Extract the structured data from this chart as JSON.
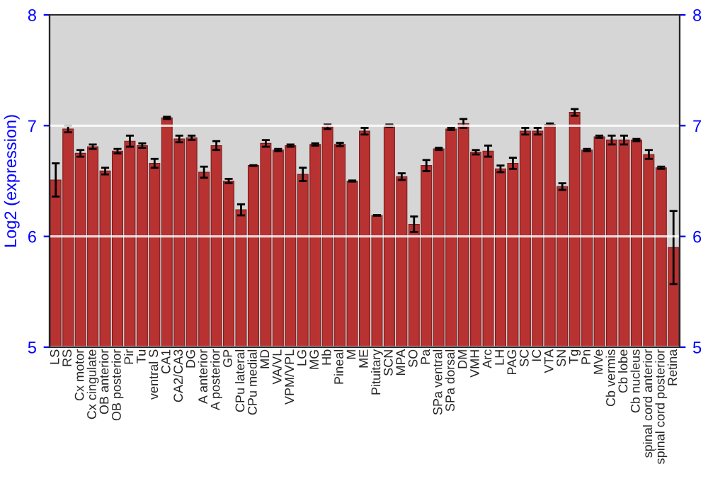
{
  "chart_data": {
    "type": "bar",
    "ylabel": "Log2 (expression)",
    "categories": [
      "LS",
      "RS",
      "Cx motor",
      "Cx cingulate",
      "OB anterior",
      "OB posterior",
      "Pir",
      "Tu",
      "ventral S",
      "CA1",
      "CA2/CA3",
      "DG",
      "A anterior",
      "A posterior",
      "GP",
      "CPu lateral",
      "CPu medial",
      "MD",
      "VA/VL",
      "VPM/VPL",
      "LG",
      "MG",
      "Hb",
      "Pineal",
      "M",
      "ME",
      "Pituitary",
      "SCN",
      "MPA",
      "SO",
      "Pa",
      "SPa ventral",
      "SPa dorsal",
      "DM",
      "VMH",
      "Arc",
      "LH",
      "PAG",
      "SC",
      "IC",
      "VTA",
      "SN",
      "Tg",
      "Pn",
      "MVe",
      "Cb vermis",
      "Cb lobe",
      "Cb nucleus",
      "spinal cord anterior",
      "spinal cord posterior",
      "Retina"
    ],
    "series": [
      {
        "color": "#b83232",
        "values": [
          6.51,
          6.97,
          6.75,
          6.81,
          6.59,
          6.77,
          6.86,
          6.82,
          6.66,
          7.07,
          6.88,
          6.89,
          6.58,
          6.82,
          6.5,
          6.24,
          6.64,
          6.84,
          6.78,
          6.82,
          6.56,
          6.83,
          6.99,
          6.83,
          6.5,
          6.95,
          6.19,
          7.0,
          6.54,
          6.11,
          6.64,
          6.79,
          6.97,
          7.02,
          6.76,
          6.77,
          6.61,
          6.66,
          6.95,
          6.95,
          7.01,
          6.45,
          7.12,
          6.78,
          6.9,
          6.87,
          6.87,
          6.87,
          6.74,
          6.62,
          5.9
        ],
        "errors": [
          0.15,
          0.03,
          0.03,
          0.02,
          0.03,
          0.02,
          0.05,
          0.02,
          0.04,
          0.01,
          0.03,
          0.02,
          0.05,
          0.04,
          0.02,
          0.05,
          0.003,
          0.03,
          0.01,
          0.01,
          0.06,
          0.01,
          0.02,
          0.015,
          0.005,
          0.03,
          0.003,
          0.01,
          0.03,
          0.07,
          0.05,
          0.01,
          0.01,
          0.04,
          0.02,
          0.05,
          0.03,
          0.05,
          0.03,
          0.03,
          0.01,
          0.03,
          0.03,
          0.01,
          0.01,
          0.04,
          0.04,
          0.01,
          0.04,
          0.01,
          0.33
        ]
      }
    ],
    "ylim": [
      5,
      8
    ],
    "yticks": [
      5,
      6,
      7,
      8
    ],
    "y2lim": [
      5,
      8
    ],
    "y2ticks": [
      5,
      6,
      7,
      8
    ],
    "grid": "y"
  }
}
